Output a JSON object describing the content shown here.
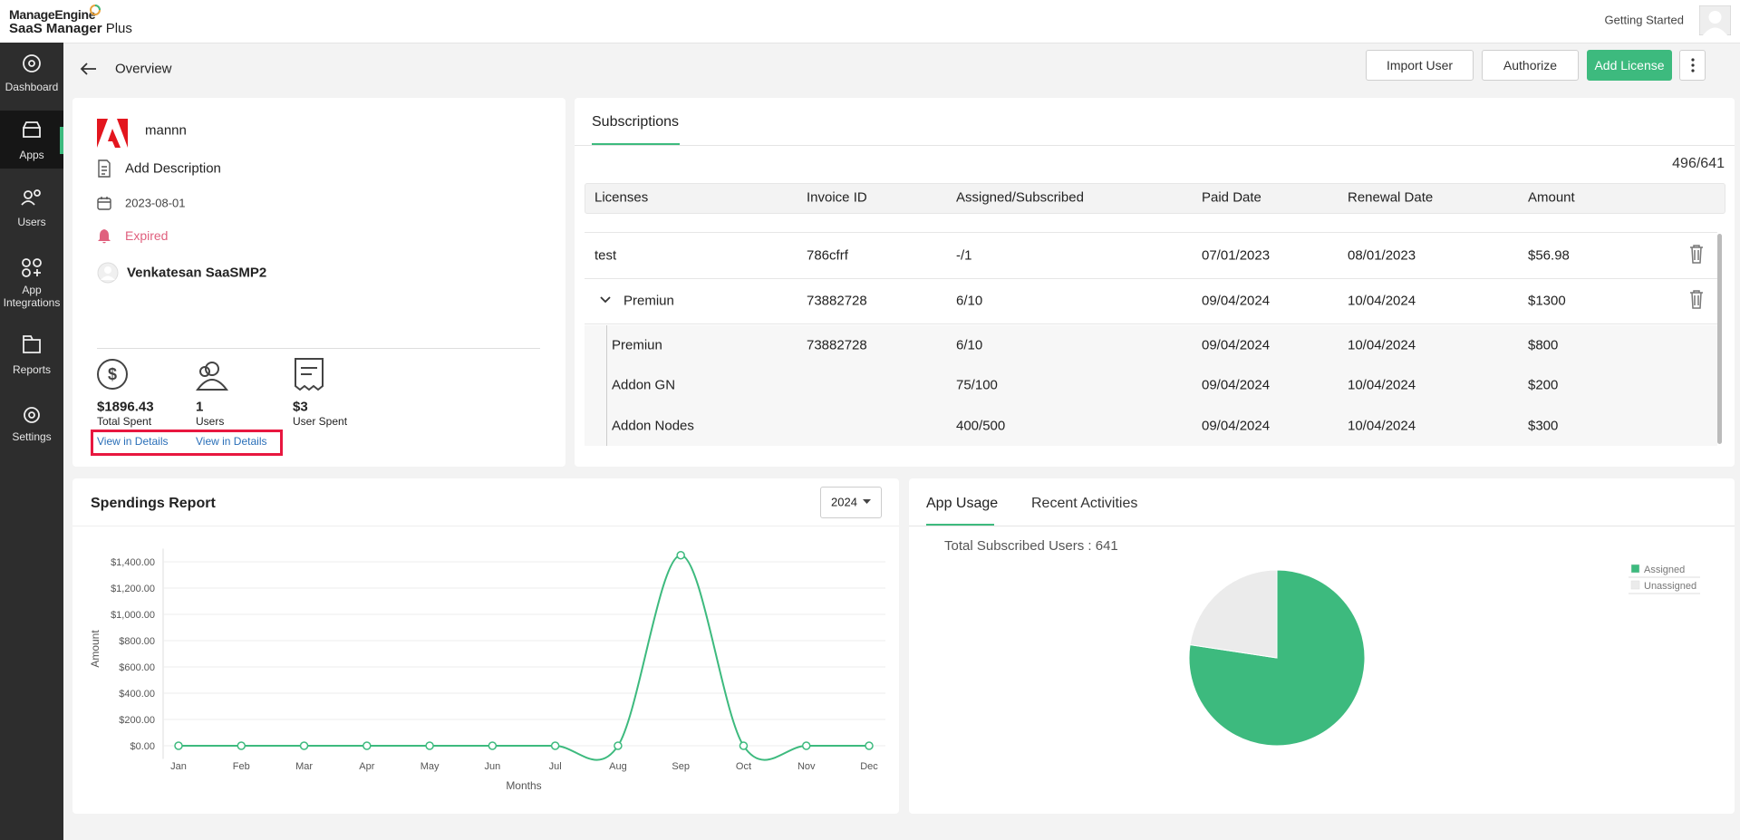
{
  "header": {
    "brand": "ManageEngine",
    "product": "SaaS Manager",
    "product_suffix": "Plus",
    "getting_started": "Getting Started"
  },
  "sidebar": {
    "items": [
      "Dashboard",
      "Apps",
      "Users",
      "App Integrations",
      "Reports",
      "Settings"
    ]
  },
  "toolbar": {
    "title": "Overview",
    "buttons": [
      "Import User",
      "Authorize",
      "Add License"
    ]
  },
  "app_card": {
    "name": "mannn",
    "description": "Add Description",
    "date": "2023-08-01",
    "status": "Expired",
    "owner": "Venkatesan SaaSMP2",
    "stats": [
      {
        "value": "$1896.43",
        "label": "Total Spent",
        "link": "View in Details"
      },
      {
        "value": "1",
        "label": "Users",
        "link": "View in Details"
      },
      {
        "value": "$3",
        "label": "User Spent"
      }
    ]
  },
  "subscriptions": {
    "tab": "Subscriptions",
    "count": "496/641",
    "columns": [
      "Licenses",
      "Invoice ID",
      "Assigned/Subscribed",
      "Paid Date",
      "Renewal Date",
      "Amount"
    ],
    "rows": [
      {
        "cells": [
          "test",
          "786cfrf",
          "-/1",
          "07/01/2023",
          "08/01/2023",
          "$56.98"
        ]
      },
      {
        "cells": [
          "Premiun",
          "73882728",
          "6/10",
          "09/04/2024",
          "10/04/2024",
          "$1300"
        ],
        "children": [
          [
            "Premiun",
            "73882728",
            "6/10",
            "09/04/2024",
            "10/04/2024",
            "$800"
          ],
          [
            "Addon GN",
            null,
            "75/100",
            "09/04/2024",
            "10/04/2024",
            "$200"
          ],
          [
            "Addon Nodes",
            null,
            "400/500",
            "09/04/2024",
            "10/04/2024",
            "$300"
          ]
        ]
      }
    ]
  },
  "spendings": {
    "year": "2024"
  },
  "usage": {
    "tabs": [
      "App Usage",
      "Recent Activities"
    ]
  },
  "chart_data": [
    {
      "type": "line",
      "title": "Spendings Report",
      "x_label": "Months",
      "y_label": "Amount",
      "categories": [
        "Jan",
        "Feb",
        "Mar",
        "Apr",
        "May",
        "Jun",
        "Jul",
        "Aug",
        "Sep",
        "Oct",
        "Nov",
        "Dec"
      ],
      "values": [
        0,
        0,
        0,
        0,
        0,
        0,
        0,
        0,
        1450,
        0,
        0,
        0
      ],
      "color": "#3dba7e",
      "grid": true,
      "ylim": [
        -100,
        1500
      ],
      "yticks": [
        {
          "value": 0,
          "label": "$0.00"
        },
        {
          "value": 200,
          "label": "$200.00"
        },
        {
          "value": 400,
          "label": "$400.00"
        },
        {
          "value": 600,
          "label": "$600.00"
        },
        {
          "value": 800,
          "label": "$800.00"
        },
        {
          "value": 1000,
          "label": "$1,000.00"
        },
        {
          "value": 1200,
          "label": "$1,200.00"
        },
        {
          "value": 1400,
          "label": "$1,400.00"
        }
      ]
    },
    {
      "type": "pie",
      "subtitle": "Total Subscribed Users : 641",
      "categories": [
        "Assigned",
        "Unassigned"
      ],
      "values": [
        496,
        145
      ],
      "colors": [
        "#3dba7e",
        "#ebebeb"
      ],
      "legend": "top-right"
    }
  ]
}
